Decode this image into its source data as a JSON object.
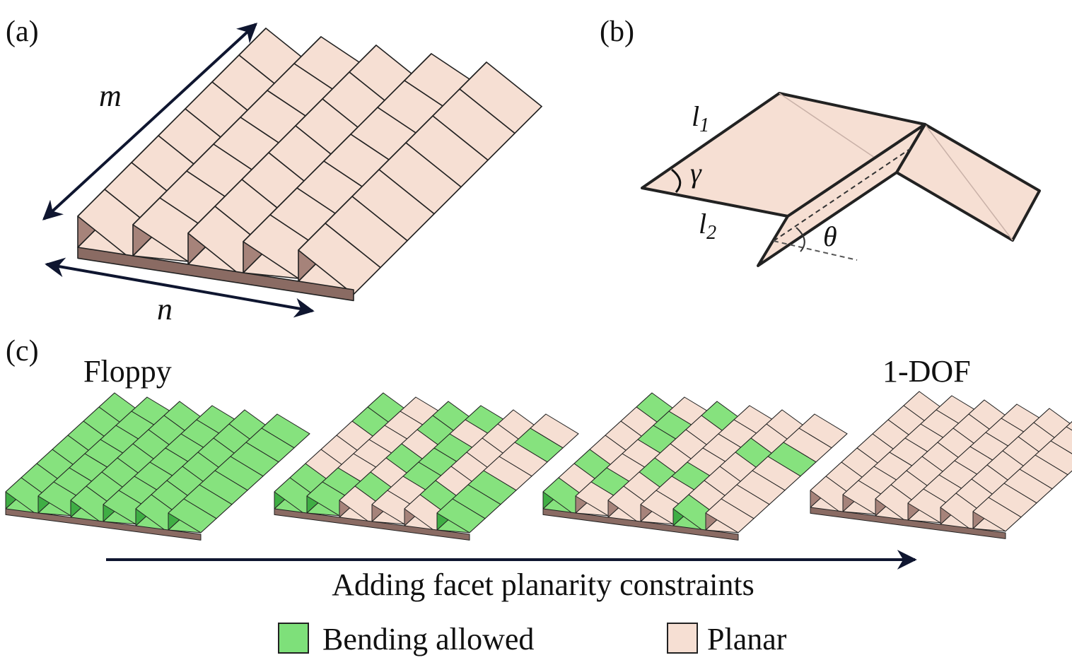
{
  "panels": {
    "a": {
      "label": "(a)",
      "dim_m": "m",
      "dim_n": "n"
    },
    "b": {
      "label": "(b)",
      "l1": {
        "base": "l",
        "sub": "1"
      },
      "l2": {
        "base": "l",
        "sub": "2"
      },
      "gamma": "γ",
      "theta": "θ"
    },
    "c": {
      "label": "(c)",
      "start_label": "Floppy",
      "end_label": "1-DOF",
      "arrow_caption": "Adding facet planarity constraints",
      "sheets": [
        {
          "bending_fraction": 1.0
        },
        {
          "bending_fraction": 0.55
        },
        {
          "bending_fraction": 0.3
        },
        {
          "bending_fraction": 0.0
        }
      ]
    }
  },
  "legend": [
    {
      "label": "Bending allowed",
      "color": "#7ee07a"
    },
    {
      "label": "Planar",
      "color": "#f6dfd3"
    }
  ],
  "colors": {
    "planar_top": "#f6dfd3",
    "shade": "#a6837a",
    "shade_dark": "#8a6b63",
    "bend_top": "#86e27e",
    "bend_shade": "#3fae44",
    "edge": "#222222"
  }
}
